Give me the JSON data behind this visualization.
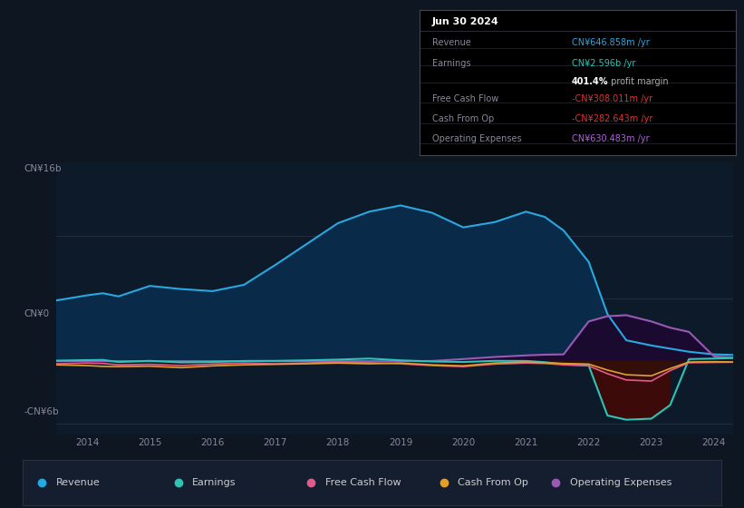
{
  "bg_color": "#0e1621",
  "plot_bg_color": "#0d1a2a",
  "ylim": [
    -7000000000.0,
    19000000000.0
  ],
  "legend": [
    {
      "label": "Revenue",
      "color": "#29a8e0"
    },
    {
      "label": "Earnings",
      "color": "#2ec4b6"
    },
    {
      "label": "Free Cash Flow",
      "color": "#e05c8a"
    },
    {
      "label": "Cash From Op",
      "color": "#e0a030"
    },
    {
      "label": "Operating Expenses",
      "color": "#9b59b6"
    }
  ],
  "x_years": [
    2013.5,
    2014.0,
    2014.25,
    2014.5,
    2015.0,
    2015.5,
    2016.0,
    2016.5,
    2017.0,
    2017.5,
    2018.0,
    2018.5,
    2019.0,
    2019.5,
    2020.0,
    2020.5,
    2021.0,
    2021.3,
    2021.6,
    2022.0,
    2022.3,
    2022.6,
    2023.0,
    2023.3,
    2023.6,
    2024.0,
    2024.3
  ],
  "revenue": [
    5800000000.0,
    6300000000.0,
    6500000000.0,
    6200000000.0,
    7200000000.0,
    6900000000.0,
    6700000000.0,
    7300000000.0,
    9200000000.0,
    11200000000.0,
    13200000000.0,
    14300000000.0,
    14900000000.0,
    14200000000.0,
    12800000000.0,
    13300000000.0,
    14300000000.0,
    13800000000.0,
    12500000000.0,
    9500000000.0,
    4500000000.0,
    2000000000.0,
    1500000000.0,
    1200000000.0,
    900000000.0,
    650000000.0,
    600000000.0
  ],
  "earnings": [
    50000000.0,
    100000000.0,
    120000000.0,
    -80000000.0,
    30000000.0,
    -120000000.0,
    -80000000.0,
    20000000.0,
    30000000.0,
    80000000.0,
    150000000.0,
    250000000.0,
    80000000.0,
    -30000000.0,
    -80000000.0,
    30000000.0,
    20000000.0,
    -100000000.0,
    -300000000.0,
    -400000000.0,
    -5200000000.0,
    -5600000000.0,
    -5500000000.0,
    -4200000000.0,
    200000000.0,
    250000000.0,
    300000000.0
  ],
  "free_cash_flow": [
    -250000000.0,
    -180000000.0,
    -220000000.0,
    -350000000.0,
    -300000000.0,
    -420000000.0,
    -280000000.0,
    -180000000.0,
    -250000000.0,
    -180000000.0,
    -80000000.0,
    -150000000.0,
    -250000000.0,
    -420000000.0,
    -520000000.0,
    -280000000.0,
    -180000000.0,
    -220000000.0,
    -350000000.0,
    -450000000.0,
    -1200000000.0,
    -1800000000.0,
    -1900000000.0,
    -900000000.0,
    -150000000.0,
    -120000000.0,
    -100000000.0
  ],
  "cash_from_op": [
    -350000000.0,
    -420000000.0,
    -500000000.0,
    -520000000.0,
    -480000000.0,
    -620000000.0,
    -450000000.0,
    -350000000.0,
    -300000000.0,
    -250000000.0,
    -180000000.0,
    -250000000.0,
    -180000000.0,
    -350000000.0,
    -450000000.0,
    -180000000.0,
    -80000000.0,
    -150000000.0,
    -220000000.0,
    -280000000.0,
    -850000000.0,
    -1300000000.0,
    -1400000000.0,
    -700000000.0,
    -80000000.0,
    -50000000.0,
    -80000000.0
  ],
  "op_expenses": [
    0.0,
    0.0,
    0.0,
    0.0,
    0.0,
    0.0,
    0.0,
    0.0,
    0.0,
    0.0,
    0.0,
    0.0,
    0.0,
    20000000.0,
    200000000.0,
    400000000.0,
    550000000.0,
    620000000.0,
    650000000.0,
    3800000000.0,
    4300000000.0,
    4400000000.0,
    3800000000.0,
    3200000000.0,
    2800000000.0,
    450000000.0,
    350000000.0
  ]
}
